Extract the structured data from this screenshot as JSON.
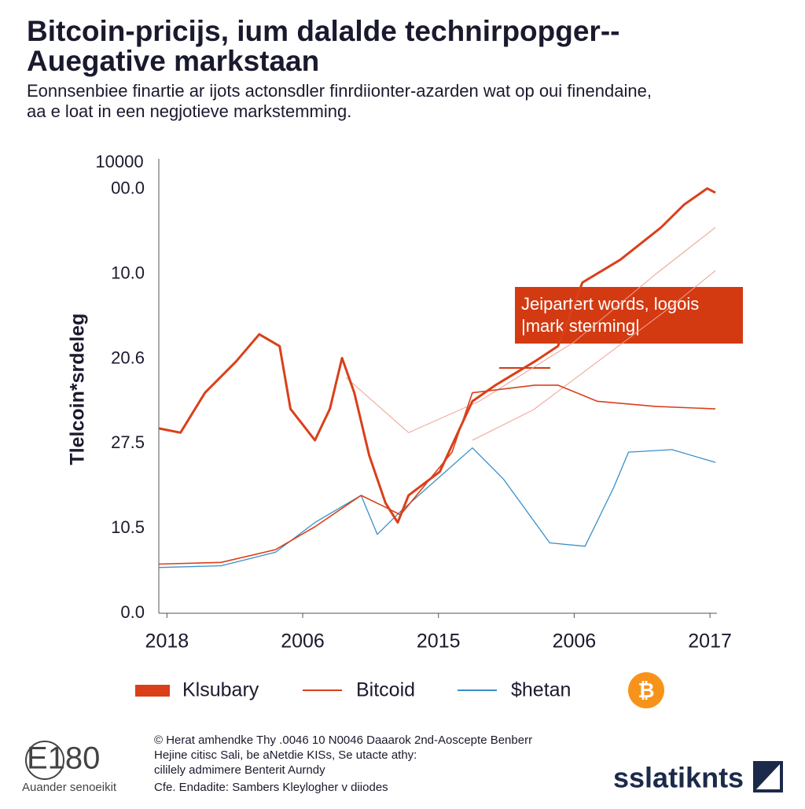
{
  "chart_data": {
    "type": "line",
    "title_lines": [
      "Bitcoin-pricijs, ium dalalde technirpopger--",
      "Auegative markstaan"
    ],
    "subtitle_lines": [
      "Eonnsenbiee finartie ar ijots actonsdler finrdiionter-azarden wat op oui finendaine,",
      "aa e loat in een negjotieve markstemming."
    ],
    "y_label": "Tlelcoin*srdeleg",
    "y_top_label": "10000",
    "ycategories": [
      "0.0",
      "10.5",
      "27.5",
      "20.6",
      "10.0",
      "00.0"
    ],
    "xcategories": [
      "2018",
      "2006",
      "2015",
      "2006",
      "2017"
    ],
    "xlim": [
      -0.06,
      4.04
    ],
    "ylim": [
      0,
      5.36
    ],
    "series": [
      {
        "name": "Klsubary",
        "color": "#d9401a",
        "width": 3,
        "x": [
          -0.06,
          0.1,
          0.28,
          0.51,
          0.68,
          0.83,
          0.91,
          1.09,
          1.2,
          1.29,
          1.38,
          1.49,
          1.61,
          1.7,
          1.78,
          2.01,
          2.25,
          2.42,
          2.71,
          2.88,
          3.06,
          3.34,
          3.64,
          3.81,
          3.98,
          4.04
        ],
        "values": [
          2.18,
          2.13,
          2.6,
          2.97,
          3.29,
          3.15,
          2.41,
          2.04,
          2.41,
          3.01,
          2.6,
          1.86,
          1.3,
          1.07,
          1.39,
          1.67,
          2.5,
          2.69,
          2.97,
          3.15,
          3.9,
          4.17,
          4.55,
          4.82,
          5.01,
          4.96
        ]
      },
      {
        "name": "Bitcoid",
        "color": "#d9401a",
        "width": 1.6,
        "x": [
          -0.06,
          0.4,
          0.8,
          1.09,
          1.43,
          1.61,
          1.72,
          2.1,
          2.25,
          2.71,
          2.88,
          3.17,
          3.6,
          4.04
        ],
        "values": [
          0.58,
          0.6,
          0.75,
          1.02,
          1.39,
          1.25,
          1.16,
          1.9,
          2.6,
          2.69,
          2.69,
          2.5,
          2.44,
          2.41
        ]
      },
      {
        "name": "$hetan",
        "color": "#3a8fc8",
        "width": 1.3,
        "x": [
          -0.06,
          0.4,
          0.8,
          1.09,
          1.43,
          1.55,
          1.72,
          2.25,
          2.48,
          2.82,
          3.08,
          3.29,
          3.4,
          3.72,
          4.04
        ],
        "values": [
          0.54,
          0.56,
          0.72,
          1.07,
          1.39,
          0.93,
          1.2,
          1.95,
          1.58,
          0.83,
          0.79,
          1.48,
          1.9,
          1.93,
          1.78
        ]
      },
      {
        "color": "#f0a090",
        "width": 1,
        "x": [
          1.32,
          1.78,
          2.3,
          3.0,
          3.6,
          4.04
        ],
        "values": [
          2.78,
          2.13,
          2.5,
          3.2,
          4.0,
          4.55
        ]
      },
      {
        "color": "#f0a090",
        "width": 1,
        "x": [
          2.25,
          2.7,
          3.2,
          3.7,
          4.04
        ],
        "values": [
          2.04,
          2.4,
          3.0,
          3.6,
          4.04
        ]
      }
    ],
    "annotation_lines": [
      "Jeipartert words, logois",
      "|mark sterming|"
    ],
    "icon_glyph": "₿",
    "footer_lines": [
      "© Herat amhendke Thy .0046 10 N0046 Daaarok 2nd-Aoscepte Benberr",
      "Hejine citisc Sali, be aNetdie KISs, Se utacte athy:",
      "cililely admimere Benterit Aurndy",
      "Cfe. Endadite: Sambers Kleylogher v diiodes"
    ],
    "logo_left": "E180",
    "logo_left_caption": "Auander senoeikit",
    "logo_right": "sslatiknts"
  }
}
